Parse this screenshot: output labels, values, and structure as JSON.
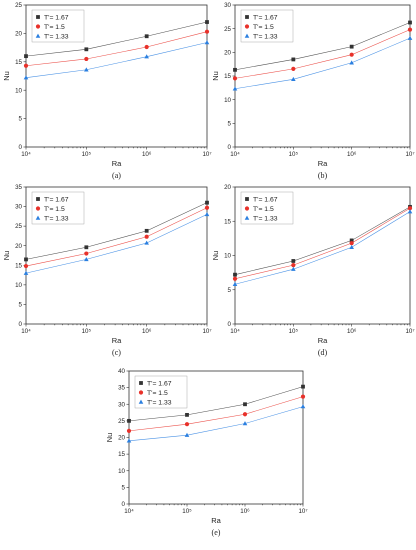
{
  "colors": {
    "s167": "#333333",
    "s15": "#e8312a",
    "s133": "#2a7fe0"
  },
  "chart_data": [
    {
      "id": "a",
      "type": "line",
      "panel_label": "(a)",
      "xlabel": "Ra",
      "ylabel": "Nu",
      "x": [
        10000,
        100000,
        1000000,
        10000000
      ],
      "xscale": "log",
      "x_tick_labels": [
        "10⁴",
        "10⁵",
        "10⁶",
        "10⁷"
      ],
      "ylim": [
        0,
        25
      ],
      "y_ticks": [
        0,
        5,
        10,
        15,
        20,
        25
      ],
      "legend_position": "top-left",
      "series": [
        {
          "name": "T'= 1.67",
          "marker": "square",
          "color": "#333333",
          "values": [
            16.0,
            17.2,
            19.5,
            22.0
          ]
        },
        {
          "name": "T'= 1.5",
          "marker": "circle",
          "color": "#e8312a",
          "values": [
            14.3,
            15.5,
            17.6,
            20.3
          ]
        },
        {
          "name": "T'= 1.33",
          "marker": "triangle",
          "color": "#2a7fe0",
          "values": [
            12.2,
            13.6,
            15.9,
            18.4
          ]
        }
      ]
    },
    {
      "id": "b",
      "type": "line",
      "panel_label": "(b)",
      "xlabel": "Ra",
      "ylabel": "Nu",
      "x": [
        10000,
        100000,
        1000000,
        10000000
      ],
      "xscale": "log",
      "x_tick_labels": [
        "10⁴",
        "10⁵",
        "10⁶",
        "10⁷"
      ],
      "ylim": [
        0,
        30
      ],
      "y_ticks": [
        0,
        5,
        10,
        15,
        20,
        25,
        30
      ],
      "legend_position": "top-left",
      "series": [
        {
          "name": "T'= 1.67",
          "marker": "square",
          "color": "#333333",
          "values": [
            16.3,
            18.5,
            21.2,
            26.3
          ]
        },
        {
          "name": "T'= 1.5",
          "marker": "circle",
          "color": "#e8312a",
          "values": [
            14.5,
            16.5,
            19.5,
            24.8
          ]
        },
        {
          "name": "T'= 1.33",
          "marker": "triangle",
          "color": "#2a7fe0",
          "values": [
            12.3,
            14.3,
            17.8,
            23.0
          ]
        }
      ]
    },
    {
      "id": "c",
      "type": "line",
      "panel_label": "(c)",
      "xlabel": "Ra",
      "ylabel": "Nu",
      "x": [
        10000,
        100000,
        1000000,
        10000000
      ],
      "xscale": "log",
      "x_tick_labels": [
        "10⁴",
        "10⁵",
        "10⁶",
        "10⁷"
      ],
      "ylim": [
        0,
        35
      ],
      "y_ticks": [
        0,
        5,
        10,
        15,
        20,
        25,
        30,
        35
      ],
      "legend_position": "top-left",
      "series": [
        {
          "name": "T'= 1.67",
          "marker": "square",
          "color": "#333333",
          "values": [
            16.5,
            19.6,
            23.8,
            31.0
          ]
        },
        {
          "name": "T'= 1.5",
          "marker": "circle",
          "color": "#e8312a",
          "values": [
            14.8,
            18.0,
            22.3,
            29.7
          ]
        },
        {
          "name": "T'= 1.33",
          "marker": "triangle",
          "color": "#2a7fe0",
          "values": [
            13.0,
            16.5,
            20.7,
            28.0
          ]
        }
      ]
    },
    {
      "id": "d",
      "type": "line",
      "panel_label": "(d)",
      "xlabel": "Ra",
      "ylabel": "Nu",
      "x": [
        10000,
        100000,
        1000000,
        10000000
      ],
      "xscale": "log",
      "x_tick_labels": [
        "10⁴",
        "10⁵",
        "10⁶",
        "10⁷"
      ],
      "ylim": [
        0,
        20
      ],
      "y_ticks": [
        0,
        5,
        10,
        15,
        20
      ],
      "legend_position": "top-left",
      "series": [
        {
          "name": "T'= 1.67",
          "marker": "square",
          "color": "#333333",
          "values": [
            7.2,
            9.2,
            12.2,
            17.1
          ]
        },
        {
          "name": "T'= 1.5",
          "marker": "circle",
          "color": "#e8312a",
          "values": [
            6.6,
            8.6,
            11.8,
            16.9
          ]
        },
        {
          "name": "T'= 1.33",
          "marker": "triangle",
          "color": "#2a7fe0",
          "values": [
            5.8,
            8.0,
            11.2,
            16.4
          ]
        }
      ]
    },
    {
      "id": "e",
      "type": "line",
      "panel_label": "(e)",
      "xlabel": "Ra",
      "ylabel": "Nu",
      "x": [
        10000,
        100000,
        1000000,
        10000000
      ],
      "xscale": "log",
      "x_tick_labels": [
        "10⁴",
        "10⁵",
        "10⁶",
        "10⁷"
      ],
      "ylim": [
        0,
        40
      ],
      "y_ticks": [
        0,
        5,
        10,
        15,
        20,
        25,
        30,
        35,
        40
      ],
      "legend_position": "top-left",
      "series": [
        {
          "name": "T'= 1.67",
          "marker": "square",
          "color": "#333333",
          "values": [
            25.0,
            26.8,
            30.0,
            35.3
          ]
        },
        {
          "name": "T'= 1.5",
          "marker": "circle",
          "color": "#e8312a",
          "values": [
            22.0,
            24.0,
            27.0,
            32.3
          ]
        },
        {
          "name": "T'= 1.33",
          "marker": "triangle",
          "color": "#2a7fe0",
          "values": [
            19.0,
            20.7,
            24.2,
            29.3
          ]
        }
      ]
    }
  ]
}
